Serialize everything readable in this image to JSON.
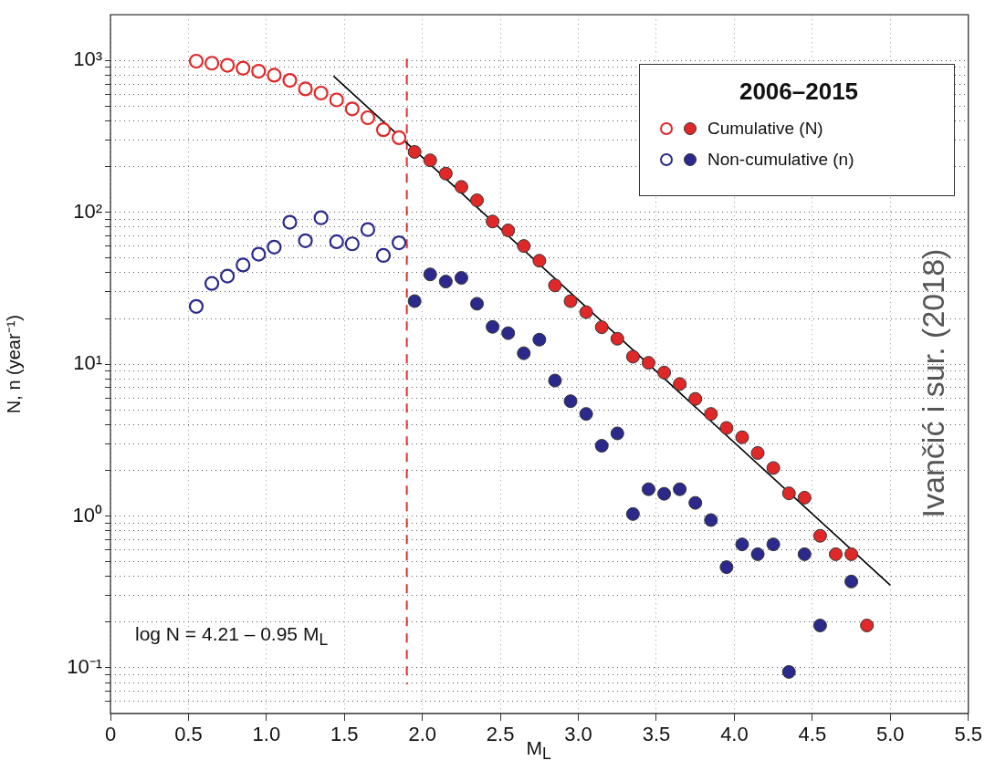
{
  "chart_data": {
    "type": "scatter",
    "xlabel": "M$_{L}$",
    "ylabel": "N, n (year⁻¹)",
    "legend_title": "2006–2015",
    "legend": "top right",
    "grid": true,
    "log": "y",
    "marker": "circle",
    "xlim": [
      0,
      5.5
    ],
    "xticks": [
      0,
      {
        "value": 0.5,
        "label": "0.5"
      },
      {
        "value": 1,
        "label": "1.0"
      },
      {
        "value": 1.5,
        "label": "1.5"
      },
      {
        "value": 2,
        "label": "2.0"
      },
      {
        "value": 2.5,
        "label": "2.5"
      },
      {
        "value": 3,
        "label": "3.0"
      },
      {
        "value": 3.5,
        "label": "3.5"
      },
      {
        "value": 4,
        "label": "4.0"
      },
      {
        "value": 4.5,
        "label": "4.5"
      },
      {
        "value": 5,
        "label": "5.0"
      },
      {
        "value": 5.5,
        "label": "5.5"
      }
    ],
    "ylim": [
      0.05,
      2000
    ],
    "yticks": [
      {
        "value": 0.06,
        "label": null
      },
      {
        "value": 0.07,
        "label": null
      },
      {
        "value": 0.08,
        "label": null
      },
      {
        "value": 0.09,
        "label": null
      },
      {
        "value": 0.1,
        "label": "10⁻¹"
      },
      {
        "value": 0.2,
        "label": null
      },
      {
        "value": 0.3,
        "label": null
      },
      {
        "value": 0.4,
        "label": null
      },
      {
        "value": 0.5,
        "label": null
      },
      {
        "value": 0.6,
        "label": null
      },
      {
        "value": 0.7,
        "label": null
      },
      {
        "value": 0.8,
        "label": null
      },
      {
        "value": 0.9,
        "label": null
      },
      {
        "value": 1,
        "label": "10⁰"
      },
      {
        "value": 2,
        "label": null
      },
      {
        "value": 3,
        "label": null
      },
      {
        "value": 4,
        "label": null
      },
      {
        "value": 5,
        "label": null
      },
      {
        "value": 6,
        "label": null
      },
      {
        "value": 7,
        "label": null
      },
      {
        "value": 8,
        "label": null
      },
      {
        "value": 9,
        "label": null
      },
      {
        "value": 10,
        "label": "10¹"
      },
      {
        "value": 20,
        "label": null
      },
      {
        "value": 30,
        "label": null
      },
      {
        "value": 40,
        "label": null
      },
      {
        "value": 50,
        "label": null
      },
      {
        "value": 60,
        "label": null
      },
      {
        "value": 70,
        "label": null
      },
      {
        "value": 80,
        "label": null
      },
      {
        "value": 90,
        "label": null
      },
      {
        "value": 100,
        "label": "10²"
      },
      {
        "value": 200,
        "label": null
      },
      {
        "value": 300,
        "label": null
      },
      {
        "value": 400,
        "label": null
      },
      {
        "value": 500,
        "label": null
      },
      {
        "value": 600,
        "label": null
      },
      {
        "value": 700,
        "label": null
      },
      {
        "value": 800,
        "label": null
      },
      {
        "value": 900,
        "label": null
      },
      {
        "value": 1000,
        "label": "10³"
      }
    ],
    "ref_lines": [
      {
        "axis": "x",
        "value": 1.9,
        "color": "#e03030",
        "line_style": "dashed"
      }
    ],
    "annotations": [
      "log N = 4.21 – 0.95 M$_{L}$",
      "Ivančić i sur. (2018)"
    ],
    "series": [
      {
        "name": "Cumulative (N)",
        "color": "#e02828",
        "x": [
          0.55,
          0.65,
          0.75,
          0.85,
          0.95,
          1.05,
          1.15,
          1.25,
          1.35,
          1.45,
          1.55,
          1.65,
          1.75,
          1.85,
          1.95,
          2.05,
          2.15,
          2.25,
          2.35,
          2.45,
          2.55,
          2.65,
          2.75,
          2.85,
          2.95,
          3.05,
          3.15,
          3.25,
          3.35,
          3.45,
          3.55,
          3.65,
          3.75,
          3.85,
          3.95,
          4.05,
          4.15,
          4.25,
          4.35,
          4.45,
          4.55,
          4.65,
          4.75,
          4.85
        ],
        "values": [
          990,
          960,
          930,
          890,
          850,
          800,
          740,
          650,
          610,
          550,
          480,
          420,
          350,
          310,
          250,
          220,
          180,
          147,
          120,
          87,
          76,
          60,
          48,
          33,
          26,
          22,
          17.5,
          14.7,
          11.2,
          10.2,
          8.8,
          7.4,
          5.9,
          4.7,
          3.8,
          3.3,
          2.6,
          2.07,
          1.41,
          1.32,
          0.74,
          0.56,
          0.56,
          0.19
        ]
      },
      {
        "name": "Non-cumulative (n)",
        "color": "#2b2a8c",
        "x": [
          0.55,
          0.65,
          0.75,
          0.85,
          0.95,
          1.05,
          1.15,
          1.25,
          1.35,
          1.45,
          1.55,
          1.65,
          1.75,
          1.85,
          1.95,
          2.05,
          2.15,
          2.25,
          2.35,
          2.45,
          2.55,
          2.65,
          2.75,
          2.85,
          2.95,
          3.05,
          3.15,
          3.25,
          3.35,
          3.45,
          3.55,
          3.65,
          3.75,
          3.85,
          3.95,
          4.05,
          4.15,
          4.25,
          4.35,
          4.45,
          4.55,
          4.75
        ],
        "values": [
          24,
          34,
          38,
          45,
          53,
          59,
          86,
          65,
          92,
          64,
          62,
          77,
          52,
          63,
          26,
          39,
          35,
          37,
          25,
          17.6,
          16,
          11.8,
          14.5,
          7.8,
          5.7,
          4.7,
          2.9,
          3.5,
          1.03,
          1.5,
          1.4,
          1.5,
          1.22,
          0.94,
          0.46,
          0.65,
          0.56,
          0.65,
          0.094,
          0.56,
          0.19,
          0.37
        ]
      },
      {
        "type": "line",
        "color": "#000000",
        "marker": "none",
        "x": [
          1.43,
          5.0
        ],
        "values": [
          790,
          0.35
        ]
      }
    ]
  }
}
